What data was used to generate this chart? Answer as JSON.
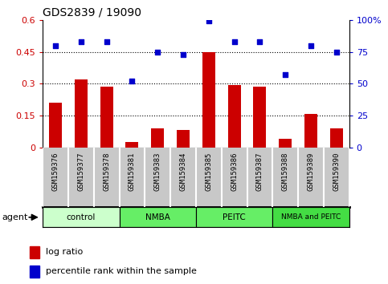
{
  "title": "GDS2839 / 19090",
  "samples": [
    "GSM159376",
    "GSM159377",
    "GSM159378",
    "GSM159381",
    "GSM159383",
    "GSM159384",
    "GSM159385",
    "GSM159386",
    "GSM159387",
    "GSM159388",
    "GSM159389",
    "GSM159390"
  ],
  "log_ratio": [
    0.21,
    0.32,
    0.285,
    0.025,
    0.09,
    0.085,
    0.45,
    0.295,
    0.285,
    0.04,
    0.16,
    0.09
  ],
  "percentile_rank": [
    80,
    83,
    83,
    52,
    75,
    73,
    99,
    83,
    83,
    57,
    80,
    75
  ],
  "bar_color": "#cc0000",
  "scatter_color": "#0000cc",
  "groups": [
    {
      "label": "control",
      "start": 0,
      "end": 3,
      "color": "#ccffcc"
    },
    {
      "label": "NMBA",
      "start": 3,
      "end": 6,
      "color": "#66ee66"
    },
    {
      "label": "PEITC",
      "start": 6,
      "end": 9,
      "color": "#66ee66"
    },
    {
      "label": "NMBA and PEITC",
      "start": 9,
      "end": 12,
      "color": "#44dd44"
    }
  ],
  "ylim_left": [
    0,
    0.6
  ],
  "ylim_right": [
    0,
    100
  ],
  "yticks_left": [
    0,
    0.15,
    0.3,
    0.45,
    0.6
  ],
  "ytick_labels_left": [
    "0",
    "0.15",
    "0.3",
    "0.45",
    "0.6"
  ],
  "yticks_right": [
    0,
    25,
    50,
    75,
    100
  ],
  "ytick_labels_right": [
    "0",
    "25",
    "50",
    "75",
    "100%"
  ],
  "hlines": [
    0.15,
    0.3,
    0.45
  ],
  "legend_items": [
    {
      "label": "log ratio",
      "color": "#cc0000"
    },
    {
      "label": "percentile rank within the sample",
      "color": "#0000cc"
    }
  ],
  "agent_label": "agent",
  "background_color": "#ffffff",
  "cell_bg_color": "#c8c8c8"
}
